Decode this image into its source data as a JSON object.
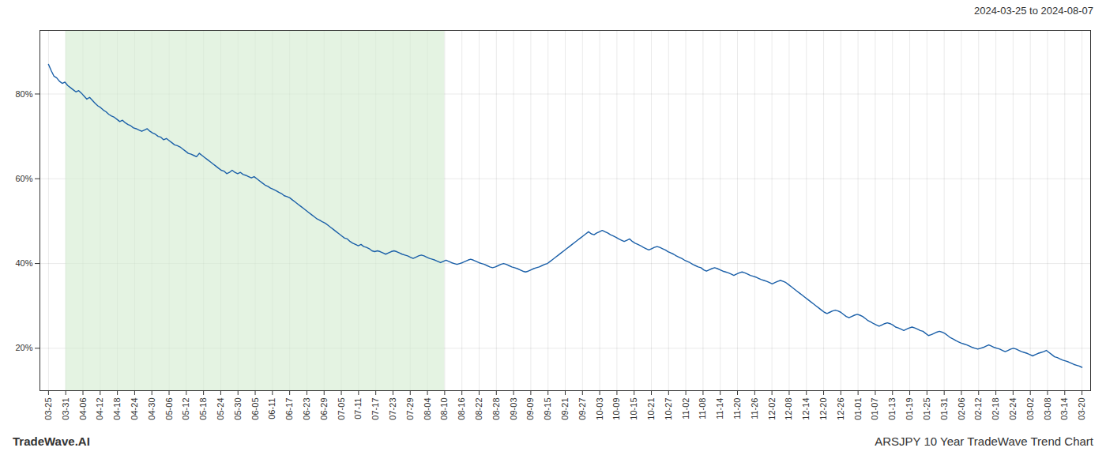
{
  "chart_data": {
    "type": "line",
    "title": "2024-03-25 to 2024-08-07",
    "annotations": [
      "TradeWave.AI",
      "ARSJPY 10 Year TradeWave Trend Chart"
    ],
    "color": "#1a5fa8",
    "grid": true,
    "xlim": [
      -0.5,
      60.5
    ],
    "xticks": [
      {
        "value": 0,
        "label": "03-25"
      },
      {
        "value": 1,
        "label": "03-31"
      },
      {
        "value": 2,
        "label": "04-06"
      },
      {
        "value": 3,
        "label": "04-12"
      },
      {
        "value": 4,
        "label": "04-18"
      },
      {
        "value": 5,
        "label": "04-24"
      },
      {
        "value": 6,
        "label": "04-30"
      },
      {
        "value": 7,
        "label": "05-06"
      },
      {
        "value": 8,
        "label": "05-12"
      },
      {
        "value": 9,
        "label": "05-18"
      },
      {
        "value": 10,
        "label": "05-24"
      },
      {
        "value": 11,
        "label": "05-30"
      },
      {
        "value": 12,
        "label": "06-05"
      },
      {
        "value": 13,
        "label": "06-11"
      },
      {
        "value": 14,
        "label": "06-17"
      },
      {
        "value": 15,
        "label": "06-23"
      },
      {
        "value": 16,
        "label": "06-29"
      },
      {
        "value": 17,
        "label": "07-05"
      },
      {
        "value": 18,
        "label": "07-11"
      },
      {
        "value": 19,
        "label": "07-17"
      },
      {
        "value": 20,
        "label": "07-23"
      },
      {
        "value": 21,
        "label": "07-29"
      },
      {
        "value": 22,
        "label": "08-04"
      },
      {
        "value": 23,
        "label": "08-10"
      },
      {
        "value": 24,
        "label": "08-16"
      },
      {
        "value": 25,
        "label": "08-22"
      },
      {
        "value": 26,
        "label": "08-28"
      },
      {
        "value": 27,
        "label": "09-03"
      },
      {
        "value": 28,
        "label": "09-09"
      },
      {
        "value": 29,
        "label": "09-15"
      },
      {
        "value": 30,
        "label": "09-21"
      },
      {
        "value": 31,
        "label": "09-27"
      },
      {
        "value": 32,
        "label": "10-03"
      },
      {
        "value": 33,
        "label": "10-09"
      },
      {
        "value": 34,
        "label": "10-15"
      },
      {
        "value": 35,
        "label": "10-21"
      },
      {
        "value": 36,
        "label": "10-27"
      },
      {
        "value": 37,
        "label": "11-02"
      },
      {
        "value": 38,
        "label": "11-08"
      },
      {
        "value": 39,
        "label": "11-14"
      },
      {
        "value": 40,
        "label": "11-20"
      },
      {
        "value": 41,
        "label": "11-26"
      },
      {
        "value": 42,
        "label": "12-02"
      },
      {
        "value": 43,
        "label": "12-08"
      },
      {
        "value": 44,
        "label": "12-14"
      },
      {
        "value": 45,
        "label": "12-20"
      },
      {
        "value": 46,
        "label": "12-26"
      },
      {
        "value": 47,
        "label": "01-01"
      },
      {
        "value": 48,
        "label": "01-07"
      },
      {
        "value": 49,
        "label": "01-13"
      },
      {
        "value": 50,
        "label": "01-19"
      },
      {
        "value": 51,
        "label": "01-25"
      },
      {
        "value": 52,
        "label": "01-31"
      },
      {
        "value": 53,
        "label": "02-06"
      },
      {
        "value": 54,
        "label": "02-12"
      },
      {
        "value": 55,
        "label": "02-18"
      },
      {
        "value": 56,
        "label": "02-24"
      },
      {
        "value": 57,
        "label": "03-02"
      },
      {
        "value": 58,
        "label": "03-08"
      },
      {
        "value": 59,
        "label": "03-14"
      },
      {
        "value": 60,
        "label": "03-20"
      }
    ],
    "ylim": [
      10,
      95
    ],
    "yticks": [
      {
        "value": 20,
        "label": "20%"
      },
      {
        "value": 40,
        "label": "40%"
      },
      {
        "value": 60,
        "label": "60%"
      },
      {
        "value": 80,
        "label": "80%"
      }
    ],
    "span": {
      "from": 1,
      "to": 23,
      "color": "#d6ecd2"
    },
    "x": [
      0,
      0.159,
      0.318,
      0.477,
      0.637,
      0.796,
      0.955,
      1.114,
      1.273,
      1.432,
      1.592,
      1.751,
      1.91,
      2.069,
      2.228,
      2.387,
      2.546,
      2.706,
      2.865,
      3.024,
      3.183,
      3.342,
      3.501,
      3.66,
      3.82,
      3.979,
      4.138,
      4.297,
      4.456,
      4.615,
      4.775,
      4.934,
      5.093,
      5.252,
      5.411,
      5.57,
      5.729,
      5.889,
      6.048,
      6.207,
      6.366,
      6.525,
      6.684,
      6.844,
      7.003,
      7.162,
      7.321,
      7.48,
      7.639,
      7.798,
      7.958,
      8.117,
      8.276,
      8.435,
      8.594,
      8.753,
      8.912,
      9.072,
      9.231,
      9.39,
      9.549,
      9.708,
      9.867,
      10.027,
      10.186,
      10.345,
      10.504,
      10.663,
      10.822,
      10.981,
      11.141,
      11.3,
      11.459,
      11.618,
      11.777,
      11.936,
      12.095,
      12.255,
      12.414,
      12.573,
      12.732,
      12.891,
      13.05,
      13.21,
      13.369,
      13.528,
      13.687,
      13.846,
      14.005,
      14.164,
      14.324,
      14.483,
      14.642,
      14.801,
      14.96,
      15.119,
      15.279,
      15.438,
      15.597,
      15.756,
      15.915,
      16.074,
      16.233,
      16.393,
      16.552,
      16.711,
      16.87,
      17.029,
      17.188,
      17.347,
      17.507,
      17.666,
      17.825,
      17.984,
      18.143,
      18.302,
      18.462,
      18.621,
      18.78,
      18.939,
      19.098,
      19.257,
      19.416,
      19.576,
      19.735,
      19.894,
      20.053,
      20.212,
      20.371,
      20.531,
      20.69,
      20.849,
      21.008,
      21.167,
      21.326,
      21.485,
      21.645,
      21.804,
      21.963,
      22.122,
      22.281,
      22.44,
      22.599,
      22.759,
      22.918,
      23.077,
      23.236,
      23.395,
      23.554,
      23.714,
      23.873,
      24.032,
      24.191,
      24.35,
      24.509,
      24.668,
      24.828,
      24.987,
      25.146,
      25.305,
      25.464,
      25.623,
      25.782,
      25.942,
      26.101,
      26.26,
      26.419,
      26.578,
      26.737,
      26.897,
      27.056,
      27.215,
      27.374,
      27.533,
      27.692,
      27.851,
      28.011,
      28.17,
      28.329,
      28.488,
      28.647,
      28.806,
      28.966,
      29.125,
      29.284,
      29.443,
      29.602,
      29.761,
      29.92,
      30.08,
      30.239,
      30.398,
      30.557,
      30.716,
      30.875,
      31.034,
      31.194,
      31.353,
      31.512,
      31.671,
      31.83,
      31.989,
      32.149,
      32.308,
      32.467,
      32.626,
      32.785,
      32.944,
      33.103,
      33.263,
      33.422,
      33.581,
      33.74,
      33.899,
      34.058,
      34.218,
      34.377,
      34.536,
      34.695,
      34.854,
      35.013,
      35.172,
      35.332,
      35.491,
      35.65,
      35.809,
      35.968,
      36.127,
      36.286,
      36.446,
      36.605,
      36.764,
      36.923,
      37.082,
      37.241,
      37.401,
      37.56,
      37.719,
      37.878,
      38.037,
      38.196,
      38.355,
      38.515,
      38.674,
      38.833,
      38.992,
      39.151,
      39.31,
      39.469,
      39.629,
      39.788,
      39.947,
      40.106,
      40.265,
      40.424,
      40.584,
      40.743,
      40.902,
      41.061,
      41.22,
      41.379,
      41.538,
      41.698,
      41.857,
      42.016,
      42.175,
      42.334,
      42.493,
      42.653,
      42.812,
      42.971,
      43.13,
      43.289,
      43.448,
      43.607,
      43.767,
      43.926,
      44.085,
      44.244,
      44.403,
      44.562,
      44.721,
      44.881,
      45.04,
      45.199,
      45.358,
      45.517,
      45.676,
      45.836,
      45.995,
      46.154,
      46.313,
      46.472,
      46.631,
      46.79,
      46.95,
      47.109,
      47.268,
      47.427,
      47.586,
      47.745,
      47.905,
      48.064,
      48.223,
      48.382,
      48.541,
      48.7,
      48.859,
      49.019,
      49.178,
      49.337,
      49.496,
      49.655,
      49.814,
      49.973,
      50.133,
      50.292,
      50.451,
      50.61,
      50.769,
      50.928,
      51.088,
      51.247,
      51.406,
      51.565,
      51.724,
      51.883,
      52.042,
      52.202,
      52.361,
      52.52,
      52.679,
      52.838,
      52.997,
      53.156,
      53.316,
      53.475,
      53.634,
      53.793,
      53.952,
      54.111,
      54.271,
      54.43,
      54.589,
      54.748,
      54.907,
      55.066,
      55.225,
      55.385,
      55.544,
      55.703,
      55.862,
      56.021,
      56.18,
      56.34,
      56.499,
      56.658,
      56.817,
      56.976,
      57.135,
      57.294,
      57.454,
      57.613,
      57.772,
      57.931,
      58.09,
      58.249,
      58.408,
      58.568,
      58.727,
      58.886,
      59.045,
      59.204,
      59.363,
      59.523,
      59.682,
      59.841,
      60
    ],
    "values": [
      87.0,
      85.5,
      84.2,
      83.8,
      83.0,
      82.5,
      82.8,
      82.0,
      81.5,
      81.0,
      80.5,
      80.8,
      80.2,
      79.5,
      78.8,
      79.2,
      78.5,
      77.8,
      77.2,
      76.8,
      76.2,
      75.8,
      75.2,
      74.8,
      74.5,
      74.0,
      73.5,
      73.8,
      73.2,
      72.8,
      72.5,
      72.0,
      71.8,
      71.5,
      71.2,
      71.5,
      71.8,
      71.2,
      70.8,
      70.5,
      70.0,
      69.8,
      69.2,
      69.5,
      69.0,
      68.5,
      68.0,
      67.8,
      67.5,
      67.0,
      66.5,
      66.0,
      65.8,
      65.5,
      65.2,
      66.0,
      65.5,
      65.0,
      64.5,
      64.0,
      63.5,
      63.0,
      62.5,
      62.0,
      61.8,
      61.2,
      61.5,
      62.0,
      61.5,
      61.2,
      61.5,
      61.0,
      60.8,
      60.5,
      60.2,
      60.5,
      60.0,
      59.5,
      59.0,
      58.5,
      58.2,
      57.8,
      57.5,
      57.2,
      56.8,
      56.5,
      56.0,
      55.8,
      55.5,
      55.0,
      54.5,
      54.0,
      53.5,
      53.0,
      52.5,
      52.0,
      51.5,
      51.0,
      50.5,
      50.2,
      49.8,
      49.5,
      49.0,
      48.5,
      48.0,
      47.5,
      47.0,
      46.5,
      46.0,
      45.8,
      45.2,
      44.8,
      44.5,
      44.2,
      44.5,
      44.0,
      43.8,
      43.5,
      43.0,
      42.8,
      43.0,
      42.8,
      42.5,
      42.2,
      42.5,
      42.8,
      43.0,
      42.8,
      42.5,
      42.2,
      42.0,
      41.8,
      41.5,
      41.2,
      41.5,
      41.8,
      42.0,
      41.8,
      41.5,
      41.2,
      41.0,
      40.8,
      40.5,
      40.2,
      40.5,
      40.8,
      40.5,
      40.2,
      40.0,
      39.8,
      40.0,
      40.2,
      40.5,
      40.8,
      41.0,
      40.8,
      40.5,
      40.2,
      40.0,
      39.8,
      39.5,
      39.2,
      39.0,
      39.2,
      39.5,
      39.8,
      40.0,
      39.8,
      39.5,
      39.2,
      39.0,
      38.8,
      38.5,
      38.2,
      38.0,
      38.2,
      38.5,
      38.8,
      39.0,
      39.2,
      39.5,
      39.8,
      40.0,
      40.5,
      41.0,
      41.5,
      42.0,
      42.5,
      43.0,
      43.5,
      44.0,
      44.5,
      45.0,
      45.5,
      46.0,
      46.5,
      47.0,
      47.5,
      47.0,
      46.8,
      47.2,
      47.5,
      47.8,
      47.5,
      47.2,
      46.8,
      46.5,
      46.2,
      45.8,
      45.5,
      45.2,
      45.5,
      45.8,
      45.2,
      44.8,
      44.5,
      44.2,
      43.8,
      43.5,
      43.2,
      43.5,
      43.8,
      44.0,
      43.8,
      43.5,
      43.2,
      42.8,
      42.5,
      42.2,
      41.8,
      41.5,
      41.2,
      40.8,
      40.5,
      40.2,
      39.8,
      39.5,
      39.2,
      39.0,
      38.5,
      38.2,
      38.5,
      38.8,
      39.0,
      38.8,
      38.5,
      38.2,
      38.0,
      37.8,
      37.5,
      37.2,
      37.5,
      37.8,
      38.0,
      37.8,
      37.5,
      37.2,
      37.0,
      36.8,
      36.5,
      36.2,
      36.0,
      35.8,
      35.5,
      35.2,
      35.5,
      35.8,
      36.0,
      35.8,
      35.5,
      35.0,
      34.5,
      34.0,
      33.5,
      33.0,
      32.5,
      32.0,
      31.5,
      31.0,
      30.5,
      30.0,
      29.5,
      29.0,
      28.5,
      28.2,
      28.5,
      28.8,
      29.0,
      28.8,
      28.5,
      28.0,
      27.5,
      27.2,
      27.5,
      27.8,
      28.0,
      27.8,
      27.5,
      27.0,
      26.5,
      26.2,
      25.8,
      25.5,
      25.2,
      25.5,
      25.8,
      26.0,
      25.8,
      25.5,
      25.0,
      24.8,
      24.5,
      24.2,
      24.5,
      24.8,
      25.0,
      24.8,
      24.5,
      24.2,
      24.0,
      23.5,
      23.0,
      23.2,
      23.5,
      23.8,
      24.0,
      23.8,
      23.5,
      23.0,
      22.5,
      22.2,
      21.8,
      21.5,
      21.2,
      21.0,
      20.8,
      20.5,
      20.2,
      20.0,
      19.8,
      20.0,
      20.2,
      20.5,
      20.8,
      20.5,
      20.2,
      20.0,
      19.8,
      19.5,
      19.2,
      19.5,
      19.8,
      20.0,
      19.8,
      19.5,
      19.2,
      19.0,
      18.8,
      18.5,
      18.2,
      18.5,
      18.8,
      19.0,
      19.2,
      19.5,
      19.0,
      18.5,
      18.0,
      17.8,
      17.5,
      17.2,
      17.0,
      16.8,
      16.5,
      16.2,
      16.0,
      15.8,
      15.5
    ]
  }
}
